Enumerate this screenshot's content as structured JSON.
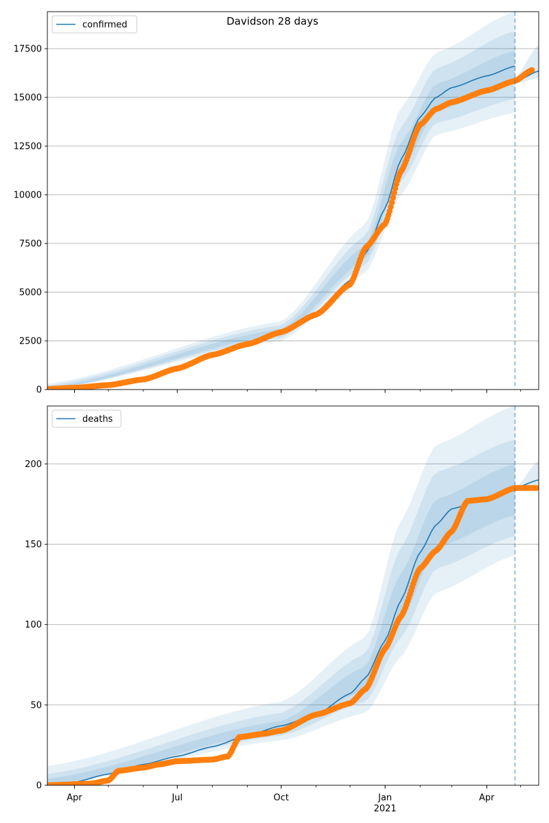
{
  "chart_data": [
    {
      "type": "line",
      "title": "Davidson 28 days",
      "legend_placement": "top-left",
      "grid": "horizontal",
      "x_range": [
        "2020-03-08",
        "2021-05-17"
      ],
      "ylim": [
        0,
        19400
      ],
      "yticks": [
        0,
        2500,
        5000,
        7500,
        10000,
        12500,
        15000,
        17500
      ],
      "forecast_start": "2021-04-26",
      "colors": {
        "model": "#1f77b4",
        "observed": "#ff7f0e",
        "band": "#1f77b4"
      },
      "series": [
        {
          "name": "confirmed",
          "kind": "model_line",
          "points": [
            [
              "2020-03-08",
              40
            ],
            [
              "2020-04-01",
              100
            ],
            [
              "2020-05-01",
              250
            ],
            [
              "2020-06-01",
              550
            ],
            [
              "2020-07-01",
              1150
            ],
            [
              "2020-08-01",
              1800
            ],
            [
              "2020-09-01",
              2350
            ],
            [
              "2020-10-01",
              2950
            ],
            [
              "2020-11-01",
              3900
            ],
            [
              "2020-12-01",
              5600
            ],
            [
              "2020-12-15",
              7000
            ],
            [
              "2021-01-01",
              9300
            ],
            [
              "2021-01-15",
              11800
            ],
            [
              "2021-02-01",
              14000
            ],
            [
              "2021-02-15",
              15000
            ],
            [
              "2021-03-01",
              15500
            ],
            [
              "2021-04-01",
              16100
            ],
            [
              "2021-04-26",
              16600
            ]
          ]
        },
        {
          "name": "",
          "kind": "forecast_line",
          "points": [
            [
              "2021-04-26",
              15800
            ],
            [
              "2021-05-17",
              16350
            ]
          ]
        },
        {
          "name": "",
          "kind": "observed_points",
          "points": [
            [
              "2020-03-08",
              30
            ],
            [
              "2020-04-01",
              90
            ],
            [
              "2020-05-01",
              230
            ],
            [
              "2020-06-01",
              520
            ],
            [
              "2020-07-01",
              1080
            ],
            [
              "2020-08-01",
              1780
            ],
            [
              "2020-09-01",
              2330
            ],
            [
              "2020-10-01",
              2950
            ],
            [
              "2020-11-01",
              3850
            ],
            [
              "2020-12-01",
              5400
            ],
            [
              "2020-12-15",
              7300
            ],
            [
              "2021-01-01",
              8500
            ],
            [
              "2021-01-15",
              11200
            ],
            [
              "2021-02-01",
              13600
            ],
            [
              "2021-02-15",
              14400
            ],
            [
              "2021-03-01",
              14750
            ],
            [
              "2021-04-01",
              15350
            ],
            [
              "2021-04-26",
              15850
            ],
            [
              "2021-05-11",
              16400
            ]
          ]
        }
      ],
      "bands": [
        {
          "level": "outer",
          "lower": [
            [
              "2020-03-08",
              0
            ],
            [
              "2020-10-01",
              2500
            ],
            [
              "2020-12-15",
              6000
            ],
            [
              "2021-01-15",
              10000
            ],
            [
              "2021-02-15",
              13100
            ],
            [
              "2021-04-26",
              14200
            ]
          ],
          "upper": [
            [
              "2020-03-08",
              300
            ],
            [
              "2020-10-01",
              3500
            ],
            [
              "2020-12-15",
              8500
            ],
            [
              "2021-01-15",
              14500
            ],
            [
              "2021-02-15",
              17300
            ],
            [
              "2021-04-26",
              19400
            ]
          ]
        },
        {
          "level": "middle",
          "lower": [
            [
              "2020-03-08",
              0
            ],
            [
              "2020-10-01",
              2650
            ],
            [
              "2020-12-15",
              6400
            ],
            [
              "2021-01-15",
              10700
            ],
            [
              "2021-02-15",
              13700
            ],
            [
              "2021-04-26",
              14900
            ]
          ],
          "upper": [
            [
              "2020-03-08",
              200
            ],
            [
              "2020-10-01",
              3300
            ],
            [
              "2020-12-15",
              7900
            ],
            [
              "2021-01-15",
              13500
            ],
            [
              "2021-02-15",
              16500
            ],
            [
              "2021-04-26",
              18400
            ]
          ]
        },
        {
          "level": "inner",
          "lower": [
            [
              "2020-03-08",
              0
            ],
            [
              "2020-10-01",
              2800
            ],
            [
              "2020-12-15",
              6700
            ],
            [
              "2021-01-15",
              11200
            ],
            [
              "2021-02-15",
              14300
            ],
            [
              "2021-04-26",
              15800
            ]
          ],
          "upper": [
            [
              "2020-03-08",
              100
            ],
            [
              "2020-10-01",
              3100
            ],
            [
              "2020-12-15",
              7400
            ],
            [
              "2021-01-15",
              12700
            ],
            [
              "2021-02-15",
              15700
            ],
            [
              "2021-04-26",
              17400
            ]
          ]
        }
      ],
      "forecast_band": {
        "lower": [
          [
            "2021-04-26",
            15700
          ],
          [
            "2021-05-17",
            16000
          ]
        ],
        "upper": [
          [
            "2021-04-26",
            16000
          ],
          [
            "2021-05-17",
            17700
          ]
        ]
      }
    },
    {
      "type": "line",
      "title": "",
      "legend_placement": "top-left",
      "grid": "horizontal",
      "x_range": [
        "2020-03-08",
        "2021-05-17"
      ],
      "ylim": [
        0,
        236
      ],
      "yticks": [
        0,
        50,
        100,
        150,
        200
      ],
      "xtick_labels": [
        {
          "date": "2020-04-01",
          "label": "Apr"
        },
        {
          "date": "2020-07-01",
          "label": "Jul"
        },
        {
          "date": "2020-10-01",
          "label": "Oct"
        },
        {
          "date": "2021-01-01",
          "label": "Jan",
          "sublabel": "2021"
        },
        {
          "date": "2021-04-01",
          "label": "Apr"
        }
      ],
      "forecast_start": "2021-04-26",
      "colors": {
        "model": "#1f77b4",
        "observed": "#ff7f0e",
        "band": "#1f77b4"
      },
      "series": [
        {
          "name": "deaths",
          "kind": "model_line",
          "points": [
            [
              "2020-03-08",
              0
            ],
            [
              "2020-04-01",
              2
            ],
            [
              "2020-05-01",
              7
            ],
            [
              "2020-06-01",
              13
            ],
            [
              "2020-07-01",
              18
            ],
            [
              "2020-08-01",
              24
            ],
            [
              "2020-09-01",
              31
            ],
            [
              "2020-10-01",
              37
            ],
            [
              "2020-11-01",
              44
            ],
            [
              "2020-12-01",
              57
            ],
            [
              "2020-12-15",
              67
            ],
            [
              "2021-01-01",
              90
            ],
            [
              "2021-01-15",
              115
            ],
            [
              "2021-02-01",
              145
            ],
            [
              "2021-02-15",
              162
            ],
            [
              "2021-03-01",
              172
            ],
            [
              "2021-04-01",
              179
            ],
            [
              "2021-04-26",
              184
            ]
          ]
        },
        {
          "name": "",
          "kind": "forecast_line",
          "points": [
            [
              "2021-04-26",
              185
            ],
            [
              "2021-05-17",
              190
            ]
          ]
        },
        {
          "name": "",
          "kind": "observed_points",
          "points": [
            [
              "2020-03-08",
              0
            ],
            [
              "2020-04-15",
              1
            ],
            [
              "2020-05-01",
              3
            ],
            [
              "2020-05-10",
              9
            ],
            [
              "2020-06-01",
              11
            ],
            [
              "2020-06-15",
              13
            ],
            [
              "2020-07-01",
              15
            ],
            [
              "2020-08-01",
              16
            ],
            [
              "2020-08-15",
              18
            ],
            [
              "2020-08-25",
              30
            ],
            [
              "2020-09-15",
              32
            ],
            [
              "2020-10-01",
              34
            ],
            [
              "2020-11-01",
              44
            ],
            [
              "2020-12-01",
              51
            ],
            [
              "2020-12-15",
              60
            ],
            [
              "2021-01-01",
              85
            ],
            [
              "2021-01-15",
              105
            ],
            [
              "2021-02-01",
              135
            ],
            [
              "2021-02-15",
              146
            ],
            [
              "2021-03-01",
              158
            ],
            [
              "2021-03-15",
              177
            ],
            [
              "2021-04-01",
              178
            ],
            [
              "2021-04-26",
              185
            ],
            [
              "2021-05-15",
              185
            ]
          ]
        }
      ],
      "bands": [
        {
          "level": "outer",
          "lower": [
            [
              "2020-03-08",
              0
            ],
            [
              "2020-10-01",
              28
            ],
            [
              "2020-12-15",
              45
            ],
            [
              "2021-01-15",
              80
            ],
            [
              "2021-02-15",
              120
            ],
            [
              "2021-04-26",
              143
            ]
          ],
          "upper": [
            [
              "2020-03-08",
              12
            ],
            [
              "2020-10-01",
              52
            ],
            [
              "2020-12-15",
              92
            ],
            [
              "2021-01-15",
              165
            ],
            [
              "2021-02-15",
              212
            ],
            [
              "2021-04-26",
              236
            ]
          ]
        },
        {
          "level": "middle",
          "lower": [
            [
              "2020-03-08",
              0
            ],
            [
              "2020-10-01",
              31
            ],
            [
              "2020-12-15",
              52
            ],
            [
              "2021-01-15",
              92
            ],
            [
              "2021-02-15",
              135
            ],
            [
              "2021-04-26",
              155
            ]
          ],
          "upper": [
            [
              "2020-03-08",
              7
            ],
            [
              "2020-10-01",
              45
            ],
            [
              "2020-12-15",
              82
            ],
            [
              "2021-01-15",
              148
            ],
            [
              "2021-02-15",
              195
            ],
            [
              "2021-04-26",
              215
            ]
          ]
        },
        {
          "level": "inner",
          "lower": [
            [
              "2020-03-08",
              0
            ],
            [
              "2020-10-01",
              34
            ],
            [
              "2020-12-15",
              59
            ],
            [
              "2021-01-15",
              102
            ],
            [
              "2021-02-15",
              148
            ],
            [
              "2021-04-26",
              168
            ]
          ],
          "upper": [
            [
              "2020-03-08",
              4
            ],
            [
              "2020-10-01",
              40
            ],
            [
              "2020-12-15",
              74
            ],
            [
              "2021-01-15",
              132
            ],
            [
              "2021-02-15",
              178
            ],
            [
              "2021-04-26",
              200
            ]
          ]
        }
      ],
      "forecast_band": {
        "lower": [
          [
            "2021-04-26",
            183
          ],
          [
            "2021-05-17",
            186
          ]
        ],
        "upper": [
          [
            "2021-04-26",
            185
          ],
          [
            "2021-05-17",
            202
          ]
        ]
      }
    }
  ]
}
